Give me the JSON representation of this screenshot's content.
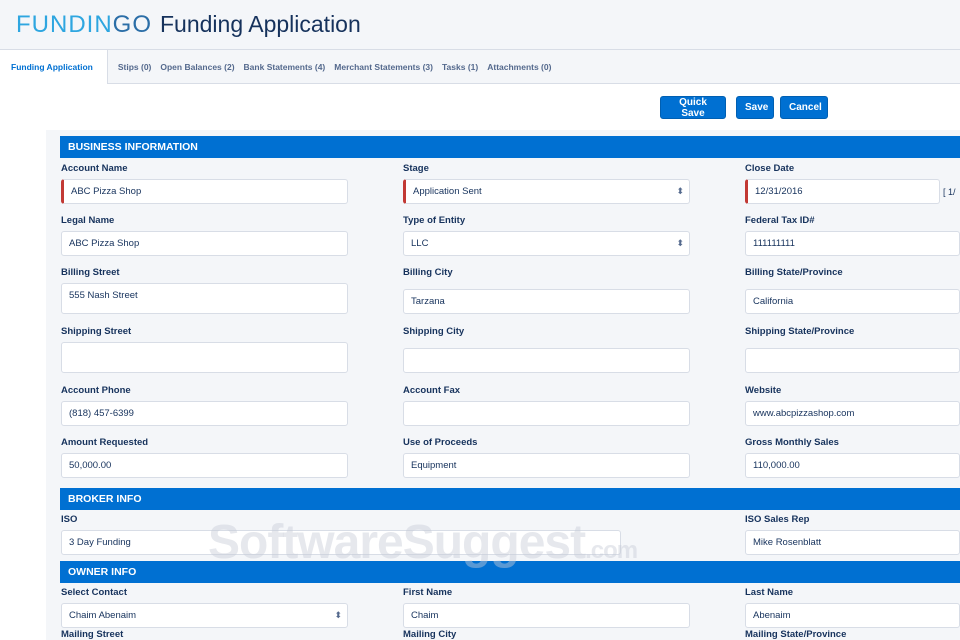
{
  "header": {
    "logo": "FUNDINGO",
    "title": "Funding Application"
  },
  "tabs": [
    "Funding Application",
    "Stips (0)",
    "Open Balances (2)",
    "Bank Statements (4)",
    "Merchant Statements (3)",
    "Tasks (1)",
    "Attachments (0)"
  ],
  "actions": {
    "quick_save": "Quick Save",
    "save": "Save",
    "cancel": "Cancel"
  },
  "sections": {
    "business": "BUSINESS INFORMATION",
    "broker": "BROKER INFO",
    "owner": "OWNER INFO"
  },
  "fields": {
    "account_name": {
      "label": "Account Name",
      "value": "ABC Pizza Shop"
    },
    "stage": {
      "label": "Stage",
      "value": "Application Sent"
    },
    "close_date": {
      "label": "Close Date",
      "value": "12/31/2016",
      "today": "[ 1/"
    },
    "legal_name": {
      "label": "Legal Name",
      "value": "ABC Pizza Shop"
    },
    "entity_type": {
      "label": "Type of Entity",
      "value": "LLC"
    },
    "tax_id": {
      "label": "Federal Tax ID#",
      "value": "111111111"
    },
    "billing_street": {
      "label": "Billing Street",
      "value": "555 Nash Street"
    },
    "billing_city": {
      "label": "Billing City",
      "value": "Tarzana"
    },
    "billing_state": {
      "label": "Billing State/Province",
      "value": "California"
    },
    "shipping_street": {
      "label": "Shipping Street",
      "value": ""
    },
    "shipping_city": {
      "label": "Shipping City",
      "value": ""
    },
    "shipping_state": {
      "label": "Shipping State/Province",
      "value": ""
    },
    "phone": {
      "label": "Account Phone",
      "value": "(818) 457-6399"
    },
    "fax": {
      "label": "Account Fax",
      "value": ""
    },
    "website": {
      "label": "Website",
      "value": "www.abcpizzashop.com"
    },
    "amount": {
      "label": "Amount Requested",
      "value": "50,000.00"
    },
    "use_of_proceeds": {
      "label": "Use of Proceeds",
      "value": "Equipment"
    },
    "gross_sales": {
      "label": "Gross Monthly Sales",
      "value": "110,000.00"
    },
    "iso": {
      "label": "ISO",
      "value": "3 Day Funding"
    },
    "iso_rep": {
      "label": "ISO Sales Rep",
      "value": "Mike Rosenblatt"
    },
    "contact": {
      "label": "Select Contact",
      "value": "Chaim Abenaim"
    },
    "first_name": {
      "label": "First Name",
      "value": "Chaim"
    },
    "last_name": {
      "label": "Last Name",
      "value": "Abenaim"
    },
    "mailing_street": {
      "label": "Mailing Street"
    },
    "mailing_city": {
      "label": "Mailing City"
    },
    "mailing_state": {
      "label": "Mailing State/Province"
    }
  },
  "watermark": "SoftwareSuggest.com",
  "colors": {
    "accent": "#0070d2",
    "required": "#c23934"
  }
}
